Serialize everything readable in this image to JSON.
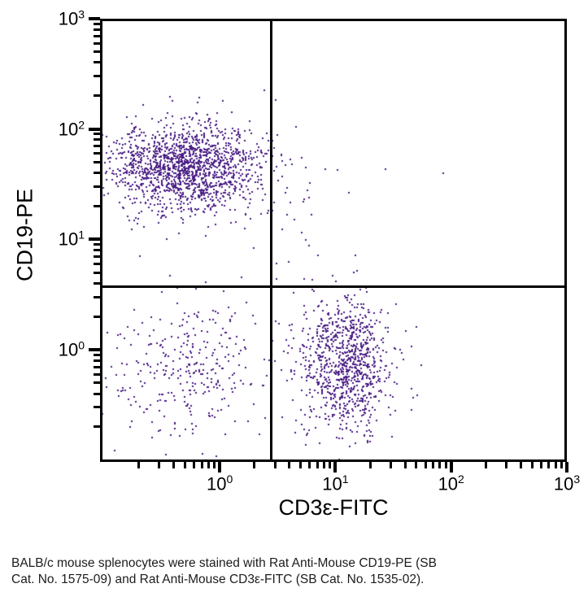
{
  "chart_data": {
    "type": "scatter",
    "subtype": "flow-cytometry-dot-plot",
    "title": "",
    "xlabel": "CD3ε-FITC",
    "ylabel": "CD19-PE",
    "x_scale": "log",
    "y_scale": "log",
    "x_range_log10": [
      -1.034,
      3
    ],
    "y_range_log10": [
      -1.017,
      3
    ],
    "x_major_tick_exponents": [
      0,
      1,
      2,
      3
    ],
    "y_major_tick_exponents": [
      0,
      1,
      2,
      3
    ],
    "tick_label_base": "10",
    "grid": "off",
    "legend": "none",
    "quadrant_gate": {
      "x_log10": 0.443,
      "y_log10": 0.575
    },
    "dot_color": "#4a1e85",
    "populations": [
      {
        "name": "CD19+ CD3- B cells (upper left)",
        "count": 1600,
        "mean_log10": [
          -0.3,
          1.66
        ],
        "sd_log10": [
          0.33,
          0.2
        ],
        "seed": 11
      },
      {
        "name": "CD3+ CD19- T cells (lower right)",
        "count": 950,
        "mean_log10": [
          1.08,
          -0.13
        ],
        "sd_log10": [
          0.2,
          0.3
        ],
        "seed": 22
      },
      {
        "name": "CD3- CD19- double negative (lower left)",
        "count": 330,
        "mean_log10": [
          -0.28,
          -0.17
        ],
        "sd_log10": [
          0.36,
          0.32
        ],
        "seed": 33
      },
      {
        "name": "sparse events (upper right)",
        "count": 26,
        "mean_log10": [
          0.7,
          1.1
        ],
        "sd_log10": [
          0.22,
          0.4
        ],
        "seed": 44
      }
    ],
    "outlier_points_log10": [
      [
        1.43,
        1.64
      ],
      [
        1.93,
        1.6
      ],
      [
        1.12,
        1.42
      ]
    ]
  },
  "caption": {
    "lines": [
      "BALB/c mouse splenocytes were stained with Rat Anti-Mouse CD19-PE (SB",
      "Cat. No. 1575-09) and Rat Anti-Mouse CD3ε-FITC (SB Cat. No. 1535-02)."
    ]
  }
}
